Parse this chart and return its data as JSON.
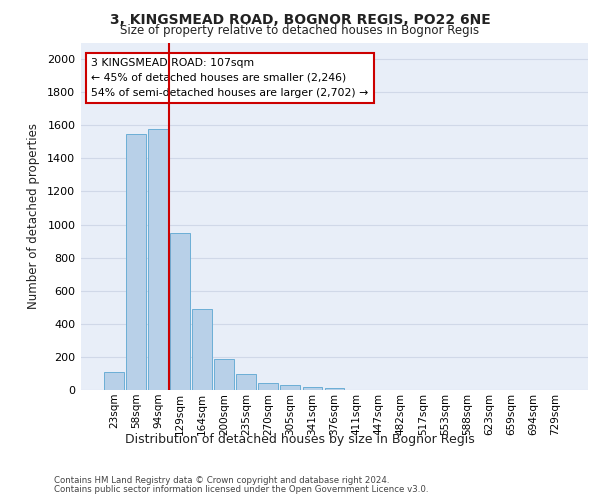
{
  "title1": "3, KINGSMEAD ROAD, BOGNOR REGIS, PO22 6NE",
  "title2": "Size of property relative to detached houses in Bognor Regis",
  "xlabel": "Distribution of detached houses by size in Bognor Regis",
  "ylabel": "Number of detached properties",
  "categories": [
    "23sqm",
    "58sqm",
    "94sqm",
    "129sqm",
    "164sqm",
    "200sqm",
    "235sqm",
    "270sqm",
    "305sqm",
    "341sqm",
    "376sqm",
    "411sqm",
    "447sqm",
    "482sqm",
    "517sqm",
    "553sqm",
    "588sqm",
    "623sqm",
    "659sqm",
    "694sqm",
    "729sqm"
  ],
  "values": [
    110,
    1545,
    1575,
    950,
    490,
    190,
    95,
    45,
    30,
    20,
    15,
    0,
    0,
    0,
    0,
    0,
    0,
    0,
    0,
    0,
    0
  ],
  "bar_color": "#b8d0e8",
  "bar_edge_color": "#6baed6",
  "vline_x": 2.5,
  "vline_color": "#cc0000",
  "annotation_text": "3 KINGSMEAD ROAD: 107sqm\n← 45% of detached houses are smaller (2,246)\n54% of semi-detached houses are larger (2,702) →",
  "annotation_box_color": "#ffffff",
  "annotation_box_edgecolor": "#cc0000",
  "ylim": [
    0,
    2100
  ],
  "yticks": [
    0,
    200,
    400,
    600,
    800,
    1000,
    1200,
    1400,
    1600,
    1800,
    2000
  ],
  "grid_color": "#d0d8e8",
  "plot_bg_color": "#e8eef8",
  "footer1": "Contains HM Land Registry data © Crown copyright and database right 2024.",
  "footer2": "Contains public sector information licensed under the Open Government Licence v3.0."
}
